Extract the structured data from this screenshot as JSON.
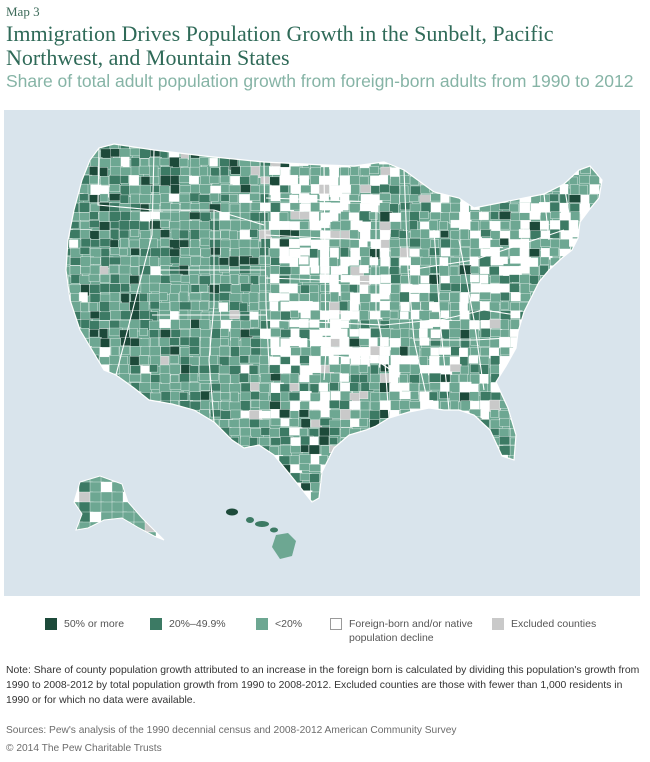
{
  "header": {
    "map_label": "Map 3",
    "title": "Immigration Drives Population Growth in the Sunbelt, Pacific Northwest, and Mountain States",
    "subtitle": "Share of total adult population growth from foreign-born adults from 1990 to 2012"
  },
  "colors": {
    "ocean": "#d9e4ec",
    "cat_50_plus": "#1d4a3a",
    "cat_20_49": "#3c7a64",
    "cat_under_20": "#6da792",
    "cat_decline": "#ffffff",
    "cat_excluded": "#c9c9c9",
    "border": "#ffffff"
  },
  "legend": [
    {
      "key": "cat_50_plus",
      "label": "50% or more"
    },
    {
      "key": "cat_20_49",
      "label": "20%–49.9%"
    },
    {
      "key": "cat_under_20",
      "label": "<20%"
    },
    {
      "key": "cat_decline",
      "label": "Foreign-born and/or native population decline"
    },
    {
      "key": "cat_excluded",
      "label": "Excluded counties"
    }
  ],
  "note": "Note: Share of county population growth attributed to an increase in the foreign born is calculated by dividing this population's growth from 1990 to 2008-2012 by total population growth from 1990 to 2008-2012. Excluded counties are those with fewer than 1,000 residents in 1990 or for which no data were available.",
  "sources": "Sources: Pew's analysis of the 1990 decennial census and 2008-2012 American Community Survey",
  "copyright": "© 2014 The Pew Charitable Trusts"
}
